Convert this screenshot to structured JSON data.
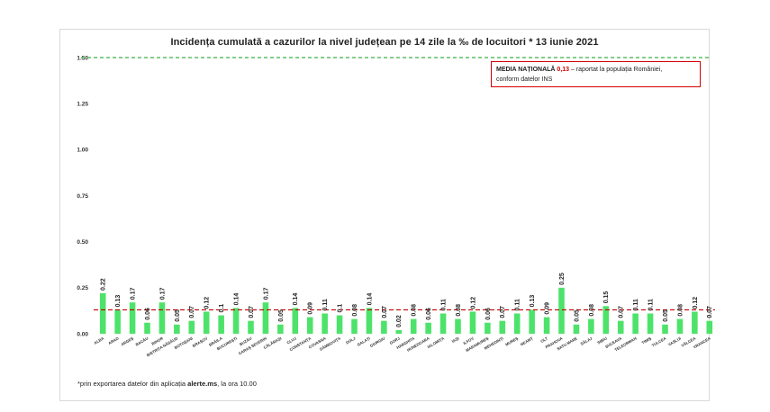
{
  "chart_data": {
    "type": "bar",
    "title": "Incidența cumulată a cazurilor la nivel județean pe 14 zile la ‰ de locuitori *  13 iunie 2021",
    "categories": [
      "ALBA",
      "ARAD",
      "ARGEȘ",
      "BACĂU",
      "BIHOR",
      "BISTRIȚA NĂSĂUD",
      "BOTOȘANI",
      "BRAȘOV",
      "BRĂILA",
      "BUCUREȘTI",
      "BUZĂU",
      "CARAȘ SEVERIN",
      "CĂLĂRAȘI",
      "CLUJ",
      "CONSTANȚA",
      "COVASNA",
      "DÂMBOVIȚA",
      "DOLJ",
      "GALAȚI",
      "GIURGIU",
      "GORJ",
      "HARGHITA",
      "HUNEDOARA",
      "IALOMIȚA",
      "IAȘI",
      "ILFOV",
      "MARAMUREȘ",
      "MEHEDINȚI",
      "MUREȘ",
      "NEAMȚ",
      "OLT",
      "PRAHOVA",
      "SATU MARE",
      "SĂLAJ",
      "SIBIU",
      "SUCEAVA",
      "TELEORMAN",
      "TIMIȘ",
      "TULCEA",
      "VASLUI",
      "VÂLCEA",
      "VRANCEA"
    ],
    "values": [
      0.22,
      0.13,
      0.17,
      0.06,
      0.17,
      0.05,
      0.07,
      0.12,
      0.1,
      0.14,
      0.07,
      0.17,
      0.05,
      0.14,
      0.09,
      0.11,
      0.1,
      0.08,
      0.14,
      0.07,
      0.02,
      0.08,
      0.06,
      0.11,
      0.08,
      0.12,
      0.06,
      0.07,
      0.11,
      0.13,
      0.09,
      0.25,
      0.05,
      0.08,
      0.15,
      0.07,
      0.11,
      0.11,
      0.05,
      0.08,
      0.12,
      0.07
    ],
    "value_labels": [
      "0.22",
      "0.13",
      "0.17",
      "0.06",
      "0.17",
      "0.05",
      "0.07",
      "0.12",
      "0.1",
      "0.14",
      "0.07",
      "0.17",
      "0.05",
      "0.14",
      "0.09",
      "0.11",
      "0.1",
      "0.08",
      "0.14",
      "0.07",
      "0.02",
      "0.08",
      "0.06",
      "0.11",
      "0.08",
      "0.12",
      "0.06",
      "0.07",
      "0.11",
      "0.13",
      "0.09",
      "0.25",
      "0.05",
      "0.08",
      "0.15",
      "0.07",
      "0.11",
      "0.11",
      "0.05",
      "0.08",
      "0.12",
      "0.07"
    ],
    "yticks": [
      "0.00",
      "0.25",
      "0.50",
      "0.75",
      "1.00",
      "1.25",
      "1.50"
    ],
    "ylim": [
      0,
      1.5
    ],
    "threshold": 1.5,
    "national_average": 0.13,
    "bar_color": "#4de36a",
    "threshold_color": "#3cb043",
    "average_color": "#c00000",
    "grid": false
  },
  "media_box": {
    "label": "MEDIA NAȚIONALĂ",
    "value": "0,13",
    "text": " – raportat la populația României,",
    "text2": "conform datelor INS"
  },
  "footnote": {
    "prefix": "*prin exportarea datelor din aplicația ",
    "source": "alerte.ms",
    "suffix": ", la ora 10.00"
  }
}
